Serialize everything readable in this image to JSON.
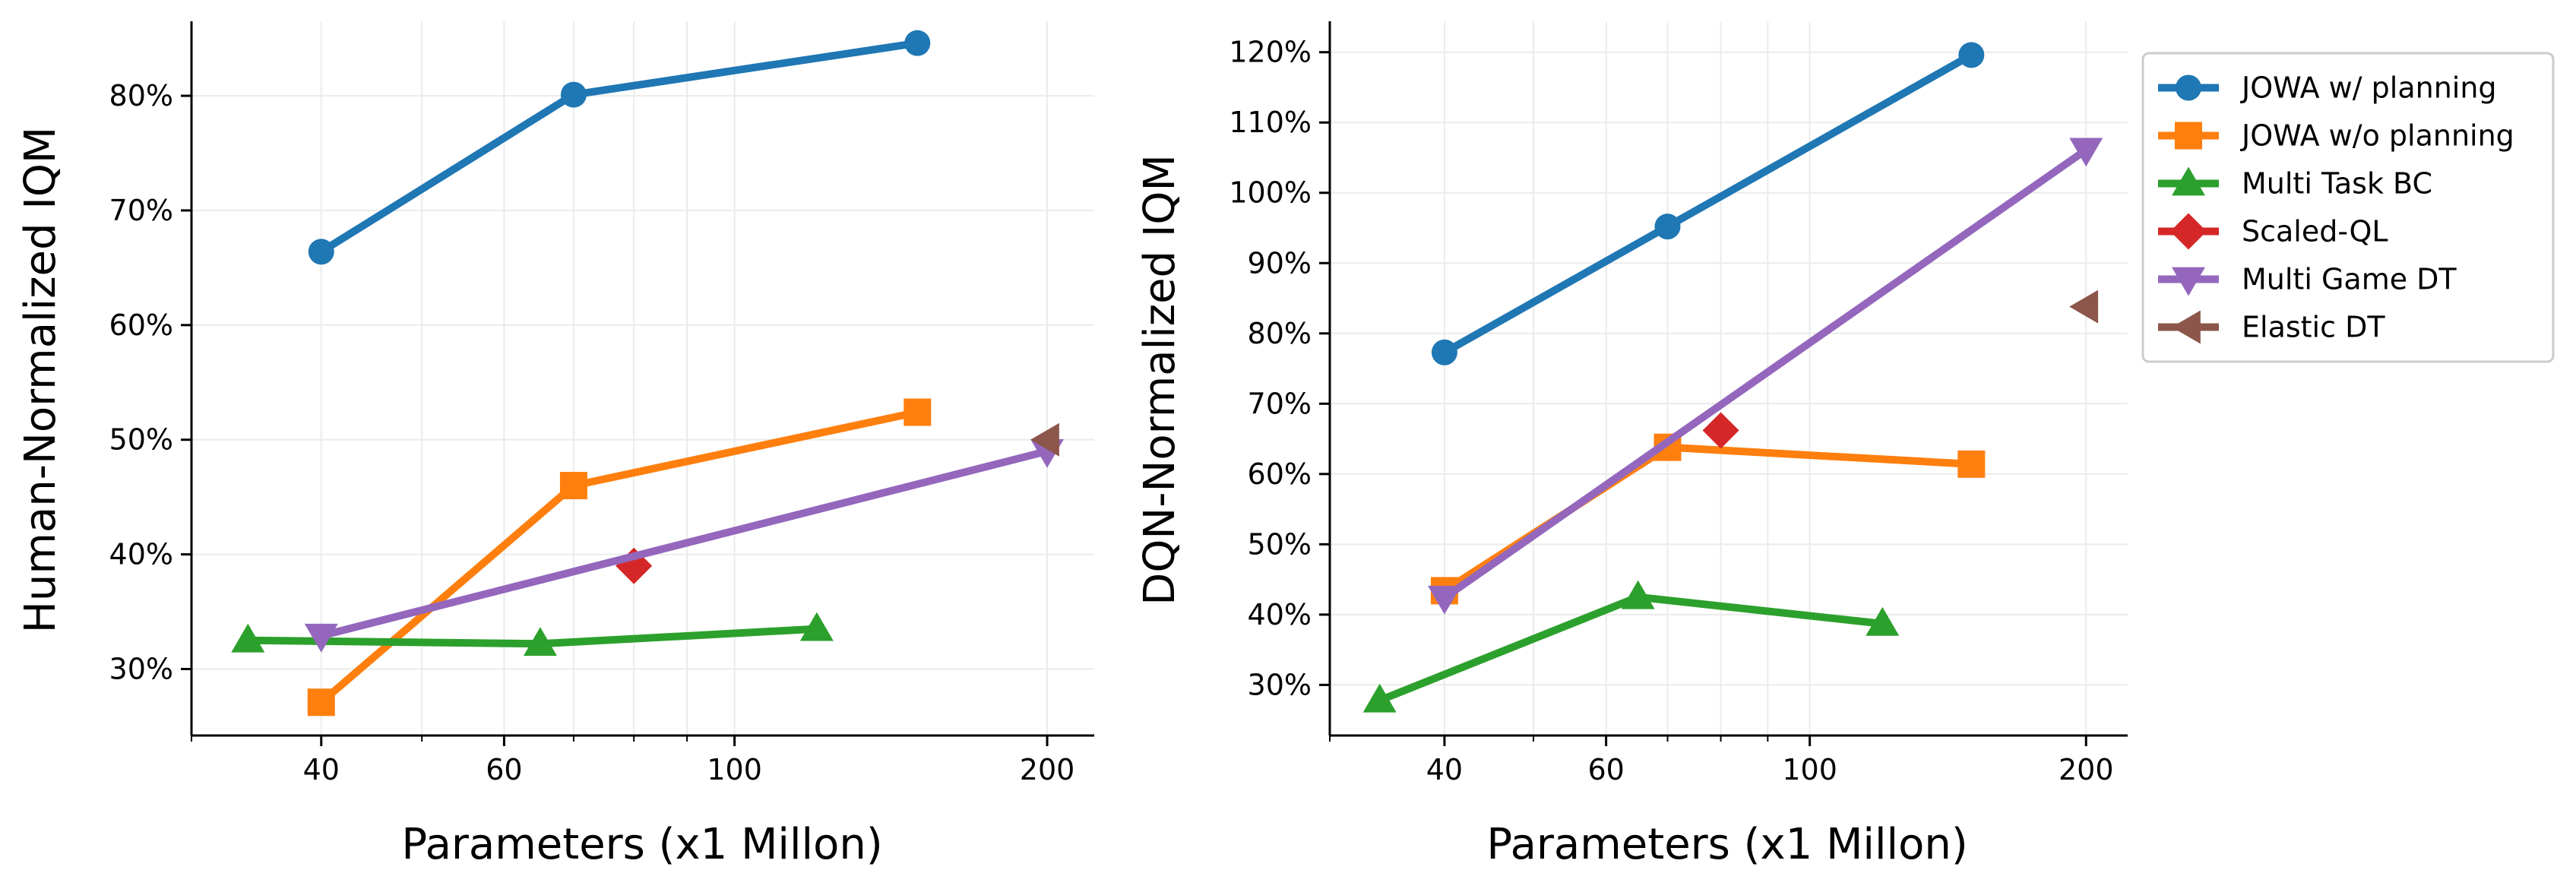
{
  "chart_data": [
    {
      "type": "line",
      "x_scale": "log",
      "xlabel": "Parameters (x1 Millon)",
      "ylabel": "Human-Normalized IQM",
      "xlim": [
        30,
        222
      ],
      "ylim": [
        24.2,
        86.5
      ],
      "xticks": [
        40,
        60,
        100,
        200
      ],
      "xtick_labels": [
        "40",
        "60",
        "100",
        "200"
      ],
      "yticks": [
        30,
        40,
        50,
        60,
        70,
        80
      ],
      "ytick_labels": [
        "30%",
        "40%",
        "50%",
        "60%",
        "70%",
        "80%"
      ],
      "grid": true,
      "series": [
        {
          "name": "JOWA w/ planning",
          "x": [
            40,
            70,
            150
          ],
          "y": [
            66.4,
            80.1,
            84.6
          ]
        },
        {
          "name": "JOWA w/o planning",
          "x": [
            40,
            70,
            150
          ],
          "y": [
            27.1,
            46.0,
            52.4
          ]
        },
        {
          "name": "Multi Task BC",
          "x": [
            34,
            65,
            120
          ],
          "y": [
            32.5,
            32.2,
            33.5
          ]
        },
        {
          "name": "Scaled-QL",
          "x": [
            80
          ],
          "y": [
            39.0
          ]
        },
        {
          "name": "Multi Game DT",
          "x": [
            40,
            200
          ],
          "y": [
            32.9,
            49.0
          ]
        },
        {
          "name": "Elastic DT",
          "x": [
            200
          ],
          "y": [
            50.0
          ]
        }
      ]
    },
    {
      "type": "line",
      "x_scale": "log",
      "xlabel": "Parameters (x1 Millon)",
      "ylabel": "DQN-Normalized IQM",
      "xlim": [
        30,
        222
      ],
      "ylim": [
        22.8,
        124.4
      ],
      "xticks": [
        40,
        60,
        100,
        200
      ],
      "xtick_labels": [
        "40",
        "60",
        "100",
        "200"
      ],
      "yticks": [
        30,
        40,
        50,
        60,
        70,
        80,
        90,
        100,
        110,
        120
      ],
      "ytick_labels": [
        "30%",
        "40%",
        "50%",
        "60%",
        "70%",
        "80%",
        "90%",
        "100%",
        "110%",
        "120%"
      ],
      "grid": true,
      "legend_position": "right",
      "legend": [
        "JOWA w/ planning",
        "JOWA w/o planning",
        "Multi Task BC",
        "Scaled-QL",
        "Multi Game DT",
        "Elastic DT"
      ],
      "series": [
        {
          "name": "JOWA w/ planning",
          "x": [
            40,
            70,
            150
          ],
          "y": [
            77.3,
            95.2,
            119.6
          ]
        },
        {
          "name": "JOWA w/o planning",
          "x": [
            40,
            70,
            150
          ],
          "y": [
            43.4,
            63.8,
            61.4
          ]
        },
        {
          "name": "Multi Task BC",
          "x": [
            34,
            65,
            120
          ],
          "y": [
            27.8,
            42.5,
            38.7
          ]
        },
        {
          "name": "Scaled-QL",
          "x": [
            80
          ],
          "y": [
            66.2
          ]
        },
        {
          "name": "Multi Game DT",
          "x": [
            40,
            200
          ],
          "y": [
            42.4,
            106.1
          ]
        },
        {
          "name": "Elastic DT",
          "x": [
            200
          ],
          "y": [
            83.8
          ]
        }
      ]
    }
  ],
  "styles": {
    "JOWA w/ planning": {
      "color": "#1f77b4",
      "marker": "circle"
    },
    "JOWA w/o planning": {
      "color": "#ff7f0e",
      "marker": "square"
    },
    "Multi Task BC": {
      "color": "#2ca02c",
      "marker": "triangle-up"
    },
    "Scaled-QL": {
      "color": "#d62728",
      "marker": "diamond"
    },
    "Multi Game DT": {
      "color": "#9467bd",
      "marker": "triangle-down"
    },
    "Elastic DT": {
      "color": "#8c564b",
      "marker": "triangle-left"
    }
  }
}
